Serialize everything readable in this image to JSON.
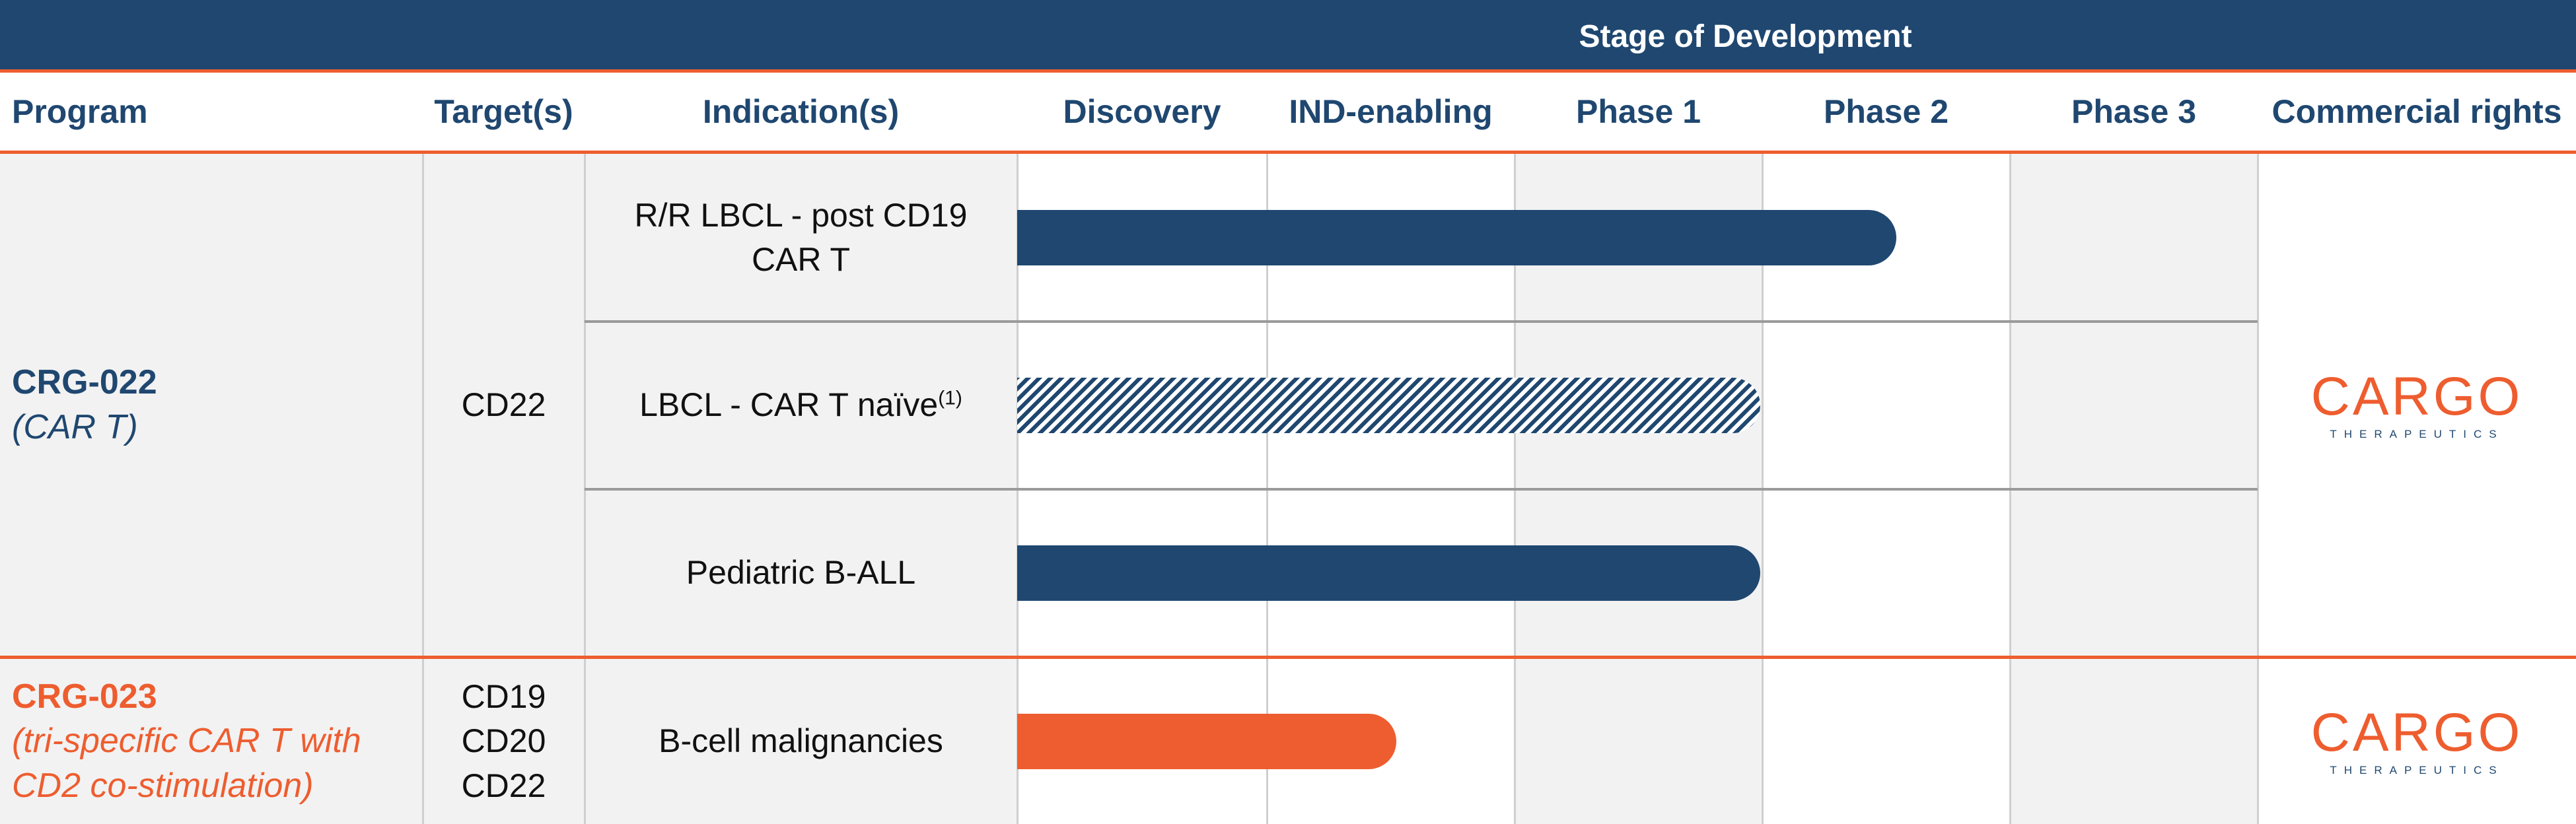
{
  "chart_data": {
    "type": "bar",
    "title": "Stage of Development",
    "columns": [
      "Program",
      "Target(s)",
      "Indication(s)",
      "Discovery",
      "IND-enabling",
      "Phase 1",
      "Phase 2",
      "Phase 3",
      "Commercial rights"
    ],
    "stages": [
      "Discovery",
      "IND-enabling",
      "Phase 1",
      "Phase 2",
      "Phase 3"
    ],
    "programs": [
      {
        "name": "CRG-022",
        "subtitle": "(CAR T)",
        "color": "#1f4770",
        "targets": [
          "CD22"
        ],
        "rights": "CARGO",
        "rights_sub": "THERAPEUTICS",
        "indications": [
          {
            "label": "R/R LBCL - post CD19 CAR T",
            "footnote": "",
            "progress_stages": 3.55,
            "style": "solid",
            "color": "#1f4770"
          },
          {
            "label": "LBCL - CAR T naïve",
            "footnote": "(1)",
            "progress_stages": 3.0,
            "style": "hatched",
            "color": "#1f4770"
          },
          {
            "label": "Pediatric B-ALL",
            "footnote": "",
            "progress_stages": 3.0,
            "style": "solid",
            "color": "#1f4770"
          }
        ]
      },
      {
        "name": "CRG-023",
        "subtitle": "(tri-specific CAR T with CD2 co-stimulation)",
        "color": "#ee5d2f",
        "targets": [
          "CD19",
          "CD20",
          "CD22"
        ],
        "rights": "CARGO",
        "rights_sub": "THERAPEUTICS",
        "indications": [
          {
            "label": "B-cell malignancies",
            "footnote": "",
            "progress_stages": 1.53,
            "style": "solid",
            "color": "#ee5d2f"
          }
        ]
      }
    ],
    "xlabel": "",
    "ylabel": "",
    "xlim": [
      0,
      5
    ]
  },
  "colors": {
    "navy": "#1f4770",
    "orange": "#ee5d2f",
    "shade": "#f2f2f2",
    "grid": "#cfcfcf"
  }
}
